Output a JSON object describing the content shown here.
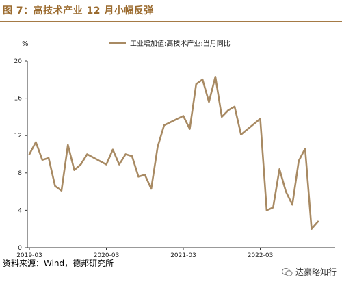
{
  "figure": {
    "title": "图 7：高技术产业 12 月小幅反弹",
    "source": "资料来源：Wind，德邦研究所",
    "watermark": "达豪略知行"
  },
  "chart_data": {
    "type": "line",
    "unit_label": "%",
    "ylim": [
      0,
      20
    ],
    "yticks": [
      0,
      4,
      8,
      12,
      16,
      20
    ],
    "xticks": [
      "2019-03",
      "2020-03",
      "2021-03",
      "2022-03"
    ],
    "grid": false,
    "legend_position": "top-center",
    "series": [
      {
        "name": "工业增加值:高技术产业:当月同比",
        "color": "#a88a63",
        "points": [
          {
            "x": "2019-03",
            "y": 10.0
          },
          {
            "x": "2019-04",
            "y": 11.3
          },
          {
            "x": "2019-05",
            "y": 9.4
          },
          {
            "x": "2019-06",
            "y": 9.6
          },
          {
            "x": "2019-07",
            "y": 6.6
          },
          {
            "x": "2019-08",
            "y": 6.1
          },
          {
            "x": "2019-09",
            "y": 11.0
          },
          {
            "x": "2019-10",
            "y": 8.3
          },
          {
            "x": "2019-11",
            "y": 8.9
          },
          {
            "x": "2019-12",
            "y": 10.0
          },
          {
            "x": "2020-03",
            "y": 8.9
          },
          {
            "x": "2020-04",
            "y": 10.5
          },
          {
            "x": "2020-05",
            "y": 8.9
          },
          {
            "x": "2020-06",
            "y": 10.0
          },
          {
            "x": "2020-07",
            "y": 9.8
          },
          {
            "x": "2020-08",
            "y": 7.6
          },
          {
            "x": "2020-09",
            "y": 7.8
          },
          {
            "x": "2020-10",
            "y": 6.3
          },
          {
            "x": "2020-11",
            "y": 10.8
          },
          {
            "x": "2020-12",
            "y": 13.1
          },
          {
            "x": "2021-03",
            "y": 14.1
          },
          {
            "x": "2021-04",
            "y": 12.7
          },
          {
            "x": "2021-05",
            "y": 17.5
          },
          {
            "x": "2021-06",
            "y": 18.0
          },
          {
            "x": "2021-07",
            "y": 15.6
          },
          {
            "x": "2021-08",
            "y": 18.3
          },
          {
            "x": "2021-09",
            "y": 14.0
          },
          {
            "x": "2021-10",
            "y": 14.7
          },
          {
            "x": "2021-11",
            "y": 15.1
          },
          {
            "x": "2021-12",
            "y": 12.1
          },
          {
            "x": "2022-03",
            "y": 13.8
          },
          {
            "x": "2022-04",
            "y": 4.0
          },
          {
            "x": "2022-05",
            "y": 4.3
          },
          {
            "x": "2022-06",
            "y": 8.4
          },
          {
            "x": "2022-07",
            "y": 6.0
          },
          {
            "x": "2022-08",
            "y": 4.6
          },
          {
            "x": "2022-09",
            "y": 9.3
          },
          {
            "x": "2022-10",
            "y": 10.6
          },
          {
            "x": "2022-11",
            "y": 2.0
          },
          {
            "x": "2022-12",
            "y": 2.8
          }
        ]
      }
    ]
  }
}
